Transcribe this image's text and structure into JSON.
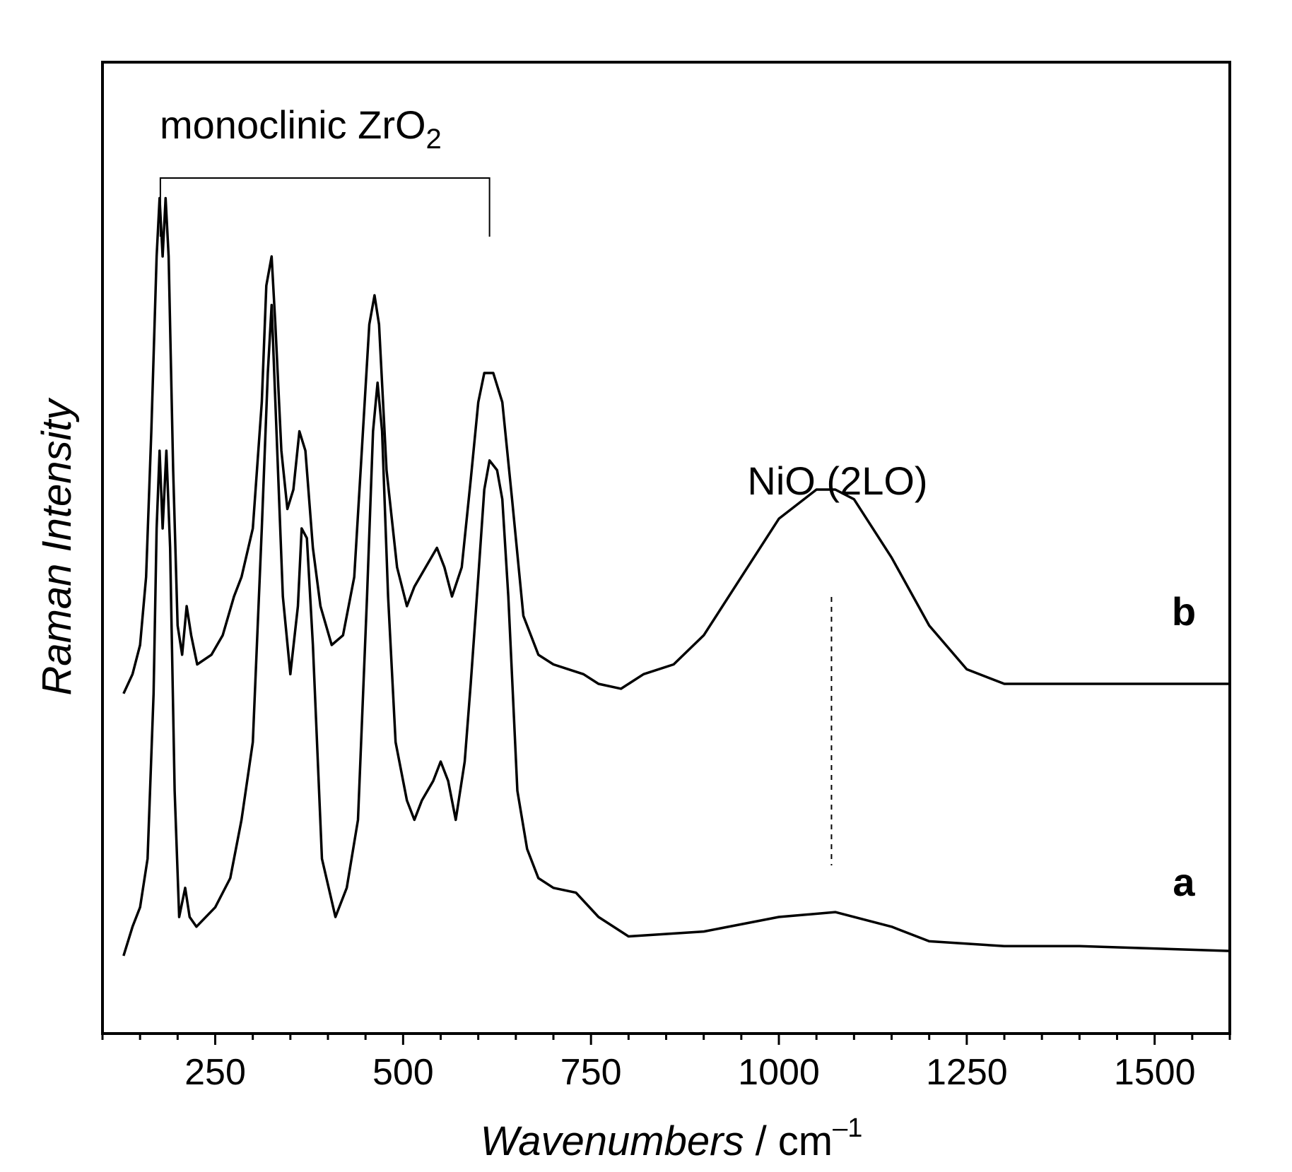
{
  "chart_data": {
    "type": "line",
    "title": "",
    "xlabel_main": "Wavenumbers",
    "xlabel_unit": " / cm",
    "xlabel_sup": "–1",
    "ylabel": "Raman Intensity",
    "xlim": [
      100,
      1600
    ],
    "ylim": [
      0,
      100
    ],
    "x_ticks": [
      250,
      500,
      750,
      1000,
      1250,
      1500
    ],
    "x_tick_labels": [
      "250",
      "500",
      "750",
      "1000",
      "1250",
      "1500"
    ],
    "minor_tick_step": 50,
    "grid": false,
    "series": [
      {
        "name": "a",
        "points": [
          [
            128,
            8
          ],
          [
            140,
            11
          ],
          [
            150,
            13
          ],
          [
            160,
            18
          ],
          [
            168,
            35
          ],
          [
            172,
            52
          ],
          [
            176,
            60
          ],
          [
            180,
            52
          ],
          [
            185,
            60
          ],
          [
            190,
            50
          ],
          [
            196,
            25
          ],
          [
            202,
            12
          ],
          [
            210,
            15
          ],
          [
            216,
            12
          ],
          [
            225,
            11
          ],
          [
            250,
            13
          ],
          [
            270,
            16
          ],
          [
            285,
            22
          ],
          [
            300,
            30
          ],
          [
            312,
            52
          ],
          [
            320,
            68
          ],
          [
            325,
            75
          ],
          [
            330,
            65
          ],
          [
            340,
            45
          ],
          [
            350,
            37
          ],
          [
            360,
            44
          ],
          [
            365,
            52
          ],
          [
            372,
            51
          ],
          [
            380,
            40
          ],
          [
            392,
            18
          ],
          [
            410,
            12
          ],
          [
            425,
            15
          ],
          [
            440,
            22
          ],
          [
            452,
            45
          ],
          [
            460,
            62
          ],
          [
            466,
            67
          ],
          [
            472,
            62
          ],
          [
            480,
            45
          ],
          [
            490,
            30
          ],
          [
            505,
            24
          ],
          [
            515,
            22
          ],
          [
            525,
            24
          ],
          [
            540,
            26
          ],
          [
            550,
            28
          ],
          [
            560,
            26
          ],
          [
            570,
            22
          ],
          [
            582,
            28
          ],
          [
            590,
            36
          ],
          [
            600,
            47
          ],
          [
            608,
            56
          ],
          [
            615,
            59
          ],
          [
            625,
            58
          ],
          [
            632,
            55
          ],
          [
            640,
            45
          ],
          [
            652,
            25
          ],
          [
            665,
            19
          ],
          [
            680,
            16
          ],
          [
            700,
            15
          ],
          [
            730,
            14.5
          ],
          [
            760,
            12
          ],
          [
            800,
            10
          ],
          [
            900,
            10.5
          ],
          [
            1000,
            12
          ],
          [
            1075,
            12.5
          ],
          [
            1150,
            11
          ],
          [
            1200,
            9.5
          ],
          [
            1300,
            9
          ],
          [
            1400,
            9
          ],
          [
            1600,
            8.5
          ]
        ]
      },
      {
        "name": "b",
        "points": [
          [
            128,
            35
          ],
          [
            140,
            37
          ],
          [
            150,
            40
          ],
          [
            158,
            47
          ],
          [
            165,
            62
          ],
          [
            172,
            80
          ],
          [
            176,
            86
          ],
          [
            180,
            80
          ],
          [
            184,
            86
          ],
          [
            188,
            80
          ],
          [
            194,
            58
          ],
          [
            200,
            42
          ],
          [
            206,
            39
          ],
          [
            212,
            44
          ],
          [
            218,
            41
          ],
          [
            226,
            38
          ],
          [
            245,
            39
          ],
          [
            260,
            41
          ],
          [
            275,
            45
          ],
          [
            285,
            47
          ],
          [
            300,
            52
          ],
          [
            312,
            65
          ],
          [
            318,
            77
          ],
          [
            325,
            80
          ],
          [
            330,
            73
          ],
          [
            338,
            60
          ],
          [
            346,
            54
          ],
          [
            354,
            56
          ],
          [
            362,
            62
          ],
          [
            370,
            60
          ],
          [
            380,
            50
          ],
          [
            390,
            44
          ],
          [
            405,
            40
          ],
          [
            420,
            41
          ],
          [
            435,
            47
          ],
          [
            445,
            60
          ],
          [
            455,
            73
          ],
          [
            462,
            76
          ],
          [
            468,
            73
          ],
          [
            478,
            58
          ],
          [
            492,
            48
          ],
          [
            505,
            44
          ],
          [
            515,
            46
          ],
          [
            530,
            48
          ],
          [
            545,
            50
          ],
          [
            555,
            48
          ],
          [
            565,
            45
          ],
          [
            578,
            48
          ],
          [
            590,
            57
          ],
          [
            600,
            65
          ],
          [
            608,
            68
          ],
          [
            620,
            68
          ],
          [
            632,
            65
          ],
          [
            645,
            55
          ],
          [
            660,
            43
          ],
          [
            680,
            39
          ],
          [
            700,
            38
          ],
          [
            720,
            37.5
          ],
          [
            740,
            37
          ],
          [
            760,
            36
          ],
          [
            790,
            35.5
          ],
          [
            820,
            37
          ],
          [
            860,
            38
          ],
          [
            900,
            41
          ],
          [
            950,
            47
          ],
          [
            1000,
            53
          ],
          [
            1050,
            56
          ],
          [
            1075,
            56
          ],
          [
            1100,
            55
          ],
          [
            1150,
            49
          ],
          [
            1200,
            42
          ],
          [
            1250,
            37.5
          ],
          [
            1300,
            36
          ],
          [
            1400,
            36
          ],
          [
            1600,
            36
          ]
        ]
      }
    ],
    "series_labels": [
      "a",
      "b"
    ],
    "annotations": {
      "bracket_label_main": "monoclinic ZrO",
      "bracket_label_sub": "2",
      "bracket_x_range": [
        177,
        615
      ],
      "peak_label": "NiO (2LO)",
      "peak_position_x": 1070
    }
  }
}
